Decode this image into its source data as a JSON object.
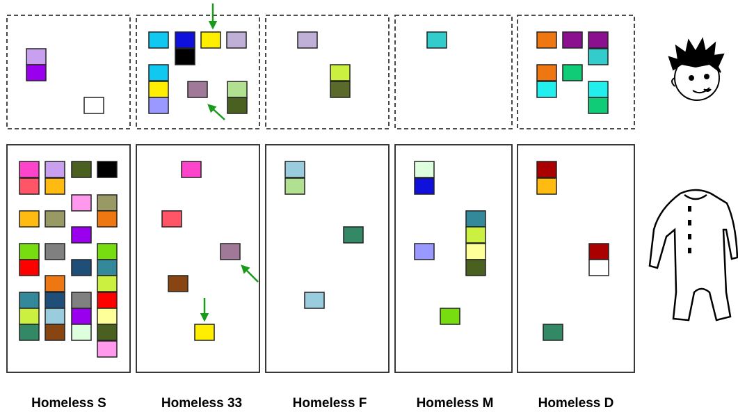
{
  "labels": [
    "Homeless S",
    "Homeless 33",
    "Homeless F",
    "Homeless M",
    "Homeless D"
  ]
}
